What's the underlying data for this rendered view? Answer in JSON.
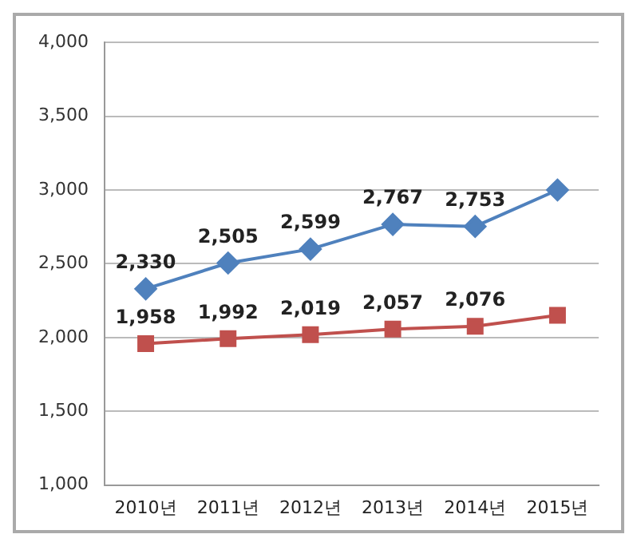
{
  "chart_data": {
    "type": "line",
    "categories": [
      "2010년",
      "2011년",
      "2012년",
      "2013년",
      "2014년",
      "2015년"
    ],
    "series": [
      {
        "color": "#4f81bd",
        "marker": "diamond",
        "values": [
          2330,
          2505,
          2599,
          2767,
          2753,
          3000
        ],
        "value_labels": [
          "2,330",
          "2,505",
          "2,599",
          "2,767",
          "2,753",
          null
        ]
      },
      {
        "color": "#c0504d",
        "marker": "square",
        "values": [
          1958,
          1992,
          2019,
          2057,
          2076,
          2150
        ],
        "value_labels": [
          "1,958",
          "1,992",
          "2,019",
          "2,057",
          "2,076",
          null
        ]
      }
    ],
    "ylim": [
      1000,
      4000
    ],
    "yticks": [
      {
        "value": 1000,
        "label": "1,000"
      },
      {
        "value": 1500,
        "label": "1,500"
      },
      {
        "value": 2000,
        "label": "2,000"
      },
      {
        "value": 2500,
        "label": "2,500"
      },
      {
        "value": 3000,
        "label": "3,000"
      },
      {
        "value": 3500,
        "label": "3,500"
      },
      {
        "value": 4000,
        "label": "4,000"
      }
    ],
    "grid": "y",
    "legend": false,
    "line_style": "solid"
  }
}
